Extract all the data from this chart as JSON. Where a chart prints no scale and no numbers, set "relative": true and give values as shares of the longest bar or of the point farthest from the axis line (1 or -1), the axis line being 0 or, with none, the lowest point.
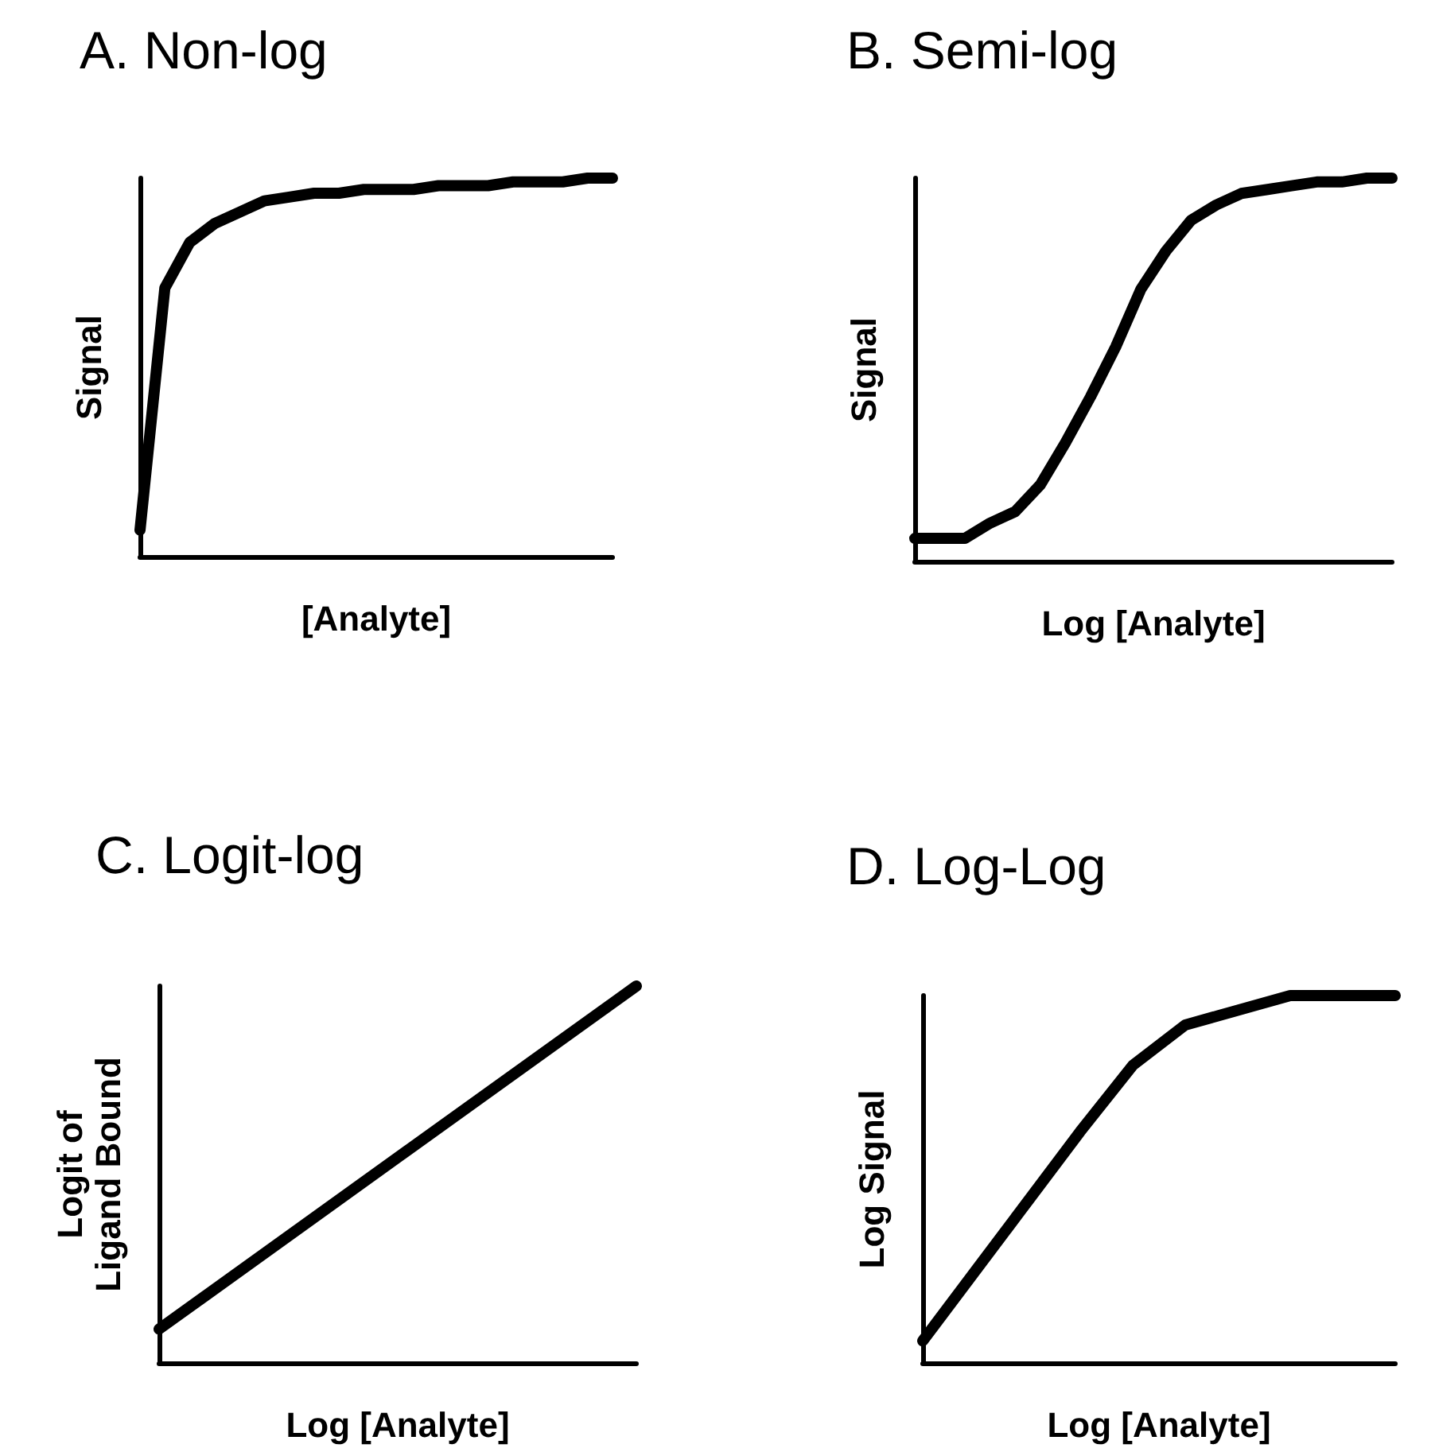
{
  "chart_data": [
    {
      "type": "line",
      "title": "A. Non-log",
      "xlabel": "[Analyte]",
      "ylabel": "Signal",
      "relative": true,
      "grid": false,
      "categories": [
        null,
        null,
        null,
        null,
        null,
        null,
        null,
        null,
        null,
        null,
        null,
        null,
        null,
        null,
        null,
        null,
        null,
        null,
        null,
        null
      ],
      "series": [
        {
          "color": "#000000",
          "values": [
            0.07,
            0.71,
            0.83,
            0.88,
            0.91,
            0.94,
            0.95,
            0.96,
            0.96,
            0.97,
            0.97,
            0.97,
            0.98,
            0.98,
            0.98,
            0.99,
            0.99,
            0.99,
            1.0,
            1.0
          ]
        }
      ]
    },
    {
      "type": "line",
      "title": "B. Semi-log",
      "xlabel": "Log [Analyte]",
      "ylabel": "Signal",
      "relative": true,
      "grid": false,
      "categories": [
        null,
        null,
        null,
        null,
        null,
        null,
        null,
        null,
        null,
        null,
        null,
        null,
        null,
        null,
        null,
        null,
        null,
        null,
        null,
        null
      ],
      "series": [
        {
          "color": "#000000",
          "values": [
            0.06,
            0.06,
            0.06,
            0.1,
            0.13,
            0.2,
            0.31,
            0.43,
            0.56,
            0.71,
            0.81,
            0.89,
            0.93,
            0.96,
            0.97,
            0.98,
            0.99,
            0.99,
            1.0,
            1.0
          ]
        }
      ]
    },
    {
      "type": "line",
      "title": "C. Logit-log",
      "xlabel": "Log [Analyte]",
      "ylabel": "Logit of\nLigand Bound",
      "relative": true,
      "grid": false,
      "categories": [
        null,
        null
      ],
      "series": [
        {
          "color": "#000000",
          "values": [
            0.09,
            1.0
          ]
        }
      ]
    },
    {
      "type": "line",
      "title": "D. Log-Log",
      "xlabel": "Log [Analyte]",
      "ylabel": "Log Signal",
      "relative": true,
      "grid": false,
      "categories": [
        null,
        null,
        null,
        null,
        null,
        null,
        null,
        null,
        null,
        null
      ],
      "series": [
        {
          "color": "#000000",
          "values": [
            0.06,
            0.25,
            0.44,
            0.63,
            0.81,
            0.92,
            0.96,
            1.0,
            1.0,
            1.0
          ]
        }
      ]
    }
  ]
}
